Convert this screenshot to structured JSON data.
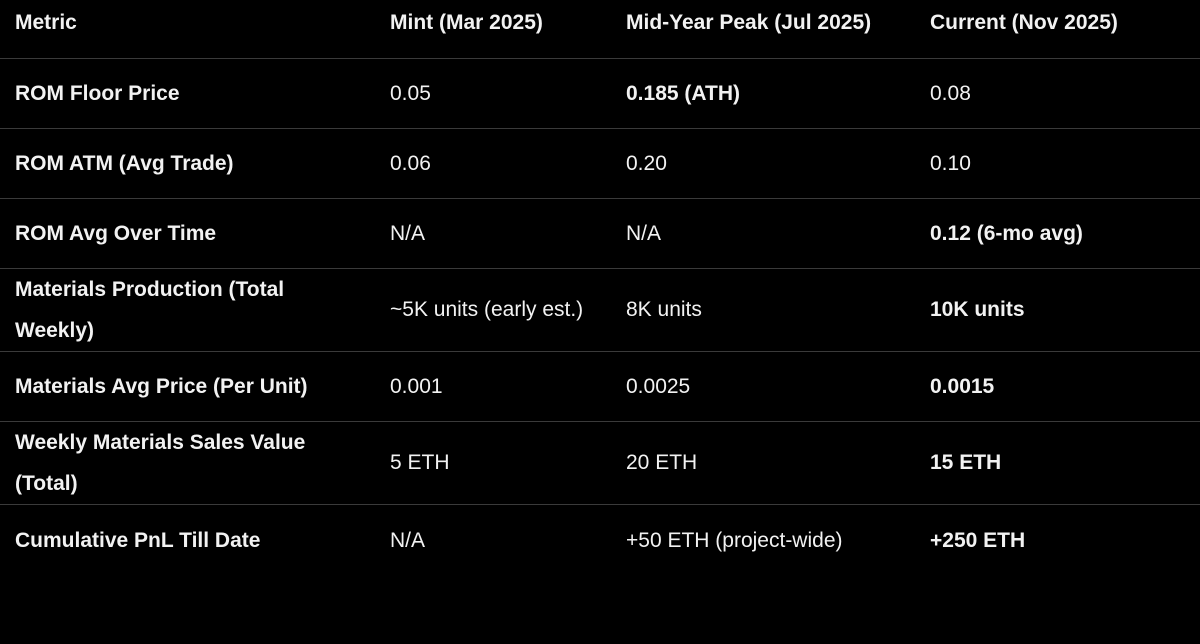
{
  "table": {
    "header": [
      "Metric",
      "Mint (Mar 2025)",
      "Mid-Year Peak (Jul 2025)",
      "Current (Nov 2025)"
    ],
    "rows": [
      [
        "ROM Floor Price",
        "0.05",
        {
          "text": "0.185 (ATH)",
          "bold": true
        },
        "0.08"
      ],
      [
        "ROM ATM (Avg Trade)",
        "0.06",
        "0.20",
        "0.10"
      ],
      [
        "ROM Avg Over Time",
        "N/A",
        "N/A",
        {
          "text": "0.12 (6-mo avg)",
          "bold": true
        }
      ],
      [
        "Materials Production (Total Weekly)",
        "~5K units (early est.)",
        "8K units",
        {
          "text": "10K units",
          "bold": true
        }
      ],
      [
        "Materials Avg Price (Per Unit)",
        "0.001",
        "0.0025",
        {
          "text": "0.0015",
          "bold": true
        }
      ],
      [
        "Weekly Materials Sales Value (Total)",
        "5 ETH",
        "20 ETH",
        {
          "text": "15 ETH",
          "bold": true
        }
      ],
      [
        "Cumulative PnL Till Date",
        "N/A",
        "+50 ETH (project-wide)",
        {
          "text": "+250 ETH",
          "bold": true
        }
      ]
    ]
  }
}
